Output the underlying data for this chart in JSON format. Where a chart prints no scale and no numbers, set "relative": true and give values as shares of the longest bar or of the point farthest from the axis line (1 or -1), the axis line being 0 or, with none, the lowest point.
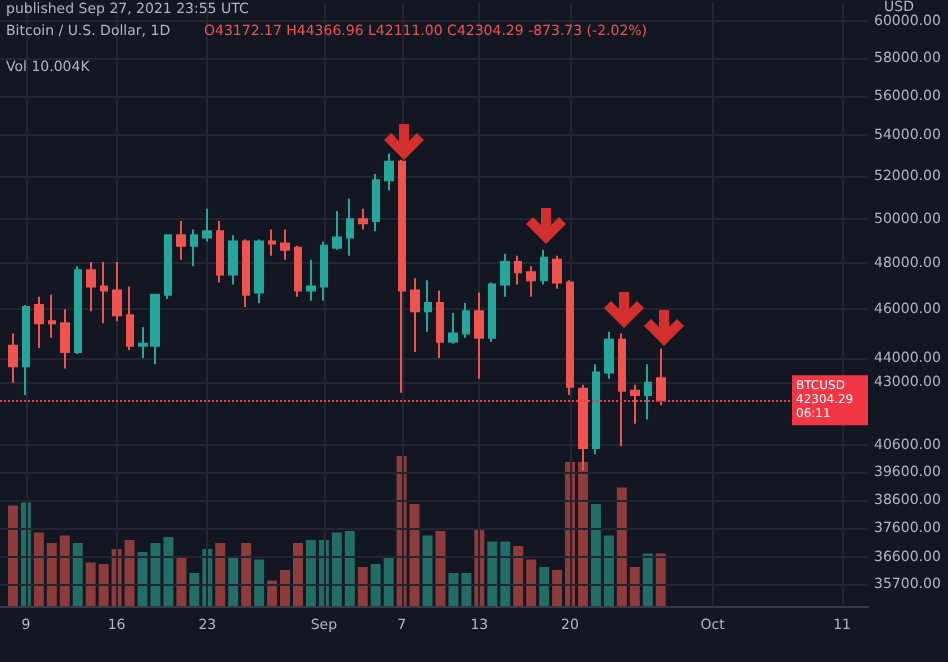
{
  "chart_data": [
    {
      "type": "candlestick",
      "title": "published Sep 27, 2021 23:55 UTC",
      "subtitle": "Bitcoin / U.S. Dollar, 1D",
      "ylabel": "USD",
      "annotations": [
        "O43172.17 H44366.96 L42111.00 C42304.29 -873.73 (-2.02%)"
      ],
      "x": [
        "2021-08-08",
        "2021-08-09",
        "2021-08-10",
        "2021-08-11",
        "2021-08-12",
        "2021-08-13",
        "2021-08-14",
        "2021-08-15",
        "2021-08-16",
        "2021-08-17",
        "2021-08-18",
        "2021-08-19",
        "2021-08-20",
        "2021-08-21",
        "2021-08-22",
        "2021-08-23",
        "2021-08-24",
        "2021-08-25",
        "2021-08-26",
        "2021-08-27",
        "2021-08-28",
        "2021-08-29",
        "2021-08-30",
        "2021-08-31",
        "2021-09-01",
        "2021-09-02",
        "2021-09-03",
        "2021-09-04",
        "2021-09-05",
        "2021-09-06",
        "2021-09-07",
        "2021-09-08",
        "2021-09-09",
        "2021-09-10",
        "2021-09-11",
        "2021-09-12",
        "2021-09-13",
        "2021-09-14",
        "2021-09-15",
        "2021-09-16",
        "2021-09-17",
        "2021-09-18",
        "2021-09-19",
        "2021-09-20",
        "2021-09-21",
        "2021-09-22",
        "2021-09-23",
        "2021-09-24",
        "2021-09-25",
        "2021-09-26",
        "2021-09-27"
      ],
      "ohlc": [
        [
          44480,
          44980,
          42990,
          43650
        ],
        [
          43650,
          46180,
          42510,
          46090
        ],
        [
          46180,
          46530,
          44390,
          45410
        ],
        [
          45490,
          46620,
          44810,
          45410
        ],
        [
          45410,
          46000,
          43560,
          44220
        ],
        [
          44220,
          47860,
          44140,
          47680
        ],
        [
          47680,
          48040,
          45920,
          46970
        ],
        [
          46970,
          48040,
          45410,
          46800
        ],
        [
          46800,
          48040,
          45490,
          45750
        ],
        [
          45750,
          46970,
          44310,
          44480
        ],
        [
          44480,
          45240,
          43980,
          44560
        ],
        [
          44480,
          46620,
          43730,
          46620
        ],
        [
          46620,
          49240,
          46440,
          49240
        ],
        [
          49240,
          49890,
          48140,
          48770
        ],
        [
          48770,
          49510,
          47860,
          49240
        ],
        [
          49140,
          50460,
          48960,
          49420
        ],
        [
          49420,
          49890,
          47150,
          47500
        ],
        [
          47500,
          49240,
          47060,
          48960
        ],
        [
          48960,
          49050,
          46090,
          46620
        ],
        [
          46710,
          49050,
          46270,
          48960
        ],
        [
          48960,
          49510,
          48320,
          48870
        ],
        [
          48870,
          49510,
          48140,
          48590
        ],
        [
          48680,
          48770,
          46530,
          46800
        ],
        [
          46800,
          48140,
          46360,
          46970
        ],
        [
          46970,
          48960,
          46360,
          48770
        ],
        [
          48680,
          50360,
          48590,
          49140
        ],
        [
          49140,
          50930,
          48320,
          49980
        ],
        [
          49980,
          50460,
          49510,
          49790
        ],
        [
          49890,
          52100,
          49420,
          51800
        ],
        [
          51800,
          53090,
          51320,
          52690
        ],
        [
          52690,
          52790,
          42590,
          46800
        ],
        [
          46800,
          47330,
          44220,
          45920
        ],
        [
          45920,
          47240,
          45060,
          46270
        ],
        [
          46270,
          46800,
          43980,
          44640
        ],
        [
          44640,
          45840,
          44560,
          44980
        ],
        [
          44980,
          46270,
          44810,
          45920
        ],
        [
          45920,
          46710,
          43150,
          44810
        ],
        [
          44810,
          47150,
          44640,
          47060
        ],
        [
          47060,
          48410,
          46530,
          48040
        ],
        [
          48040,
          48320,
          47060,
          47590
        ],
        [
          47590,
          47860,
          46530,
          47240
        ],
        [
          47240,
          48590,
          47060,
          48230
        ],
        [
          48140,
          48320,
          46880,
          47150
        ],
        [
          47150,
          47240,
          42510,
          42830
        ],
        [
          42750,
          42910,
          39650,
          40480
        ],
        [
          40480,
          43730,
          40250,
          43400
        ],
        [
          43400,
          45060,
          43150,
          44730
        ],
        [
          44730,
          44980,
          40550,
          42670
        ],
        [
          42670,
          42910,
          41400,
          42510
        ],
        [
          42510,
          43730,
          41560,
          42990
        ],
        [
          43172.17,
          44366.96,
          42111.0,
          42304.29
        ]
      ],
      "colors": [
        "#ef5350",
        "#26a69a",
        "#ef5350",
        "#ef5350",
        "#ef5350",
        "#26a69a",
        "#ef5350",
        "#ef5350",
        "#ef5350",
        "#ef5350",
        "#26a69a",
        "#26a69a",
        "#26a69a",
        "#ef5350",
        "#26a69a",
        "#26a69a",
        "#ef5350",
        "#26a69a",
        "#ef5350",
        "#26a69a",
        "#ef5350",
        "#ef5350",
        "#ef5350",
        "#26a69a",
        "#26a69a",
        "#26a69a",
        "#26a69a",
        "#ef5350",
        "#26a69a",
        "#26a69a",
        "#ef5350",
        "#ef5350",
        "#26a69a",
        "#ef5350",
        "#26a69a",
        "#26a69a",
        "#ef5350",
        "#26a69a",
        "#26a69a",
        "#ef5350",
        "#ef5350",
        "#26a69a",
        "#ef5350",
        "#ef5350",
        "#ef5350",
        "#26a69a",
        "#26a69a",
        "#ef5350",
        "#ef5350",
        "#26a69a",
        "#ef5350"
      ],
      "xlim": [
        "2021-08-07",
        "2021-10-13"
      ],
      "xticks": [
        {
          "value": "2021-08-09",
          "label": null
        },
        {
          "value": "2021-08-16",
          "label": null
        },
        {
          "value": "2021-08-23",
          "label": null
        },
        {
          "value": "2021-09-01",
          "label": null
        },
        {
          "value": "2021-09-07",
          "label": null
        },
        {
          "value": "2021-09-13",
          "label": null
        },
        {
          "value": "2021-09-20",
          "label": null
        },
        {
          "value": "2021-10-01",
          "label": null
        },
        {
          "value": "2021-10-11",
          "label": null
        }
      ],
      "log": true,
      "ylim": [
        35000,
        61000
      ],
      "yticks": [
        {
          "value": 35700,
          "label": "35700.00"
        },
        {
          "value": 36600,
          "label": "36600.00"
        },
        {
          "value": 37600,
          "label": "37600.00"
        },
        {
          "value": 38600,
          "label": "38600.00"
        },
        {
          "value": 39600,
          "label": "39600.00"
        },
        {
          "value": 40600,
          "label": "40600.00"
        },
        {
          "value": 43000,
          "label": "43000.00"
        },
        {
          "value": 44000,
          "label": "44000.00"
        },
        {
          "value": 46000,
          "label": "46000.00"
        },
        {
          "value": 48000,
          "label": "48000.00"
        },
        {
          "value": 50000,
          "label": "50000.00"
        },
        {
          "value": 52000,
          "label": "52000.00"
        },
        {
          "value": 54000,
          "label": "54000.00"
        },
        {
          "value": 56000,
          "label": "56000.00"
        },
        {
          "value": 58000,
          "label": "58000.00"
        },
        {
          "value": 60000,
          "label": "60000.00"
        }
      ],
      "ref_lines": [
        {
          "axis": "y",
          "value": 42304.29,
          "label": "BTCUSD 42304.29 06:11",
          "color": "#f23645",
          "line_style": "dotted"
        }
      ],
      "grid": true,
      "tick_labels": "y"
    },
    {
      "type": "bar",
      "title": "Vol 10.004K",
      "relative": true,
      "tick_labels": "x",
      "x": [
        "2021-08-08",
        "2021-08-09",
        "2021-08-10",
        "2021-08-11",
        "2021-08-12",
        "2021-08-13",
        "2021-08-14",
        "2021-08-15",
        "2021-08-16",
        "2021-08-17",
        "2021-08-18",
        "2021-08-19",
        "2021-08-20",
        "2021-08-21",
        "2021-08-22",
        "2021-08-23",
        "2021-08-24",
        "2021-08-25",
        "2021-08-26",
        "2021-08-27",
        "2021-08-28",
        "2021-08-29",
        "2021-08-30",
        "2021-08-31",
        "2021-09-01",
        "2021-09-02",
        "2021-09-03",
        "2021-09-04",
        "2021-09-05",
        "2021-09-06",
        "2021-09-07",
        "2021-09-08",
        "2021-09-09",
        "2021-09-10",
        "2021-09-11",
        "2021-09-12",
        "2021-09-13",
        "2021-09-14",
        "2021-09-15",
        "2021-09-16",
        "2021-09-17",
        "2021-09-18",
        "2021-09-19",
        "2021-09-20",
        "2021-09-21",
        "2021-09-22",
        "2021-09-23",
        "2021-09-24",
        "2021-09-25",
        "2021-09-26",
        "2021-09-27"
      ],
      "values": [
        0.67,
        0.69,
        0.49,
        0.42,
        0.47,
        0.42,
        0.29,
        0.28,
        0.38,
        0.44,
        0.36,
        0.42,
        0.46,
        0.33,
        0.22,
        0.38,
        0.42,
        0.32,
        0.42,
        0.31,
        0.17,
        0.24,
        0.42,
        0.44,
        0.44,
        0.49,
        0.5,
        0.26,
        0.28,
        0.33,
        1,
        0.68,
        0.47,
        0.5,
        0.22,
        0.22,
        0.51,
        0.43,
        0.43,
        0.4,
        0.31,
        0.26,
        0.24,
        0.96,
        0.96,
        0.68,
        0.47,
        0.79,
        0.26,
        0.35,
        0.35
      ],
      "colors": [
        "#8e3b3b",
        "#226d66",
        "#8e3b3b",
        "#8e3b3b",
        "#8e3b3b",
        "#226d66",
        "#8e3b3b",
        "#8e3b3b",
        "#8e3b3b",
        "#8e3b3b",
        "#226d66",
        "#226d66",
        "#226d66",
        "#8e3b3b",
        "#226d66",
        "#226d66",
        "#8e3b3b",
        "#226d66",
        "#8e3b3b",
        "#226d66",
        "#8e3b3b",
        "#8e3b3b",
        "#8e3b3b",
        "#226d66",
        "#226d66",
        "#226d66",
        "#226d66",
        "#8e3b3b",
        "#226d66",
        "#226d66",
        "#8e3b3b",
        "#8e3b3b",
        "#226d66",
        "#8e3b3b",
        "#226d66",
        "#226d66",
        "#8e3b3b",
        "#226d66",
        "#226d66",
        "#8e3b3b",
        "#8e3b3b",
        "#226d66",
        "#8e3b3b",
        "#8e3b3b",
        "#8e3b3b",
        "#226d66",
        "#226d66",
        "#8e3b3b",
        "#8e3b3b",
        "#226d66",
        "#8e3b3b"
      ],
      "xlim": [
        "2021-08-07",
        "2021-10-13"
      ],
      "xticks": [
        {
          "value": "2021-08-09",
          "label": "9"
        },
        {
          "value": "2021-08-16",
          "label": "16"
        },
        {
          "value": "2021-08-23",
          "label": "23"
        },
        {
          "value": "2021-09-01",
          "label": "Sep"
        },
        {
          "value": "2021-09-07",
          "label": "7"
        },
        {
          "value": "2021-09-13",
          "label": "13"
        },
        {
          "value": "2021-09-20",
          "label": "20"
        },
        {
          "value": "2021-10-01",
          "label": "Oct"
        },
        {
          "value": "2021-10-11",
          "label": "11"
        }
      ]
    }
  ]
}
